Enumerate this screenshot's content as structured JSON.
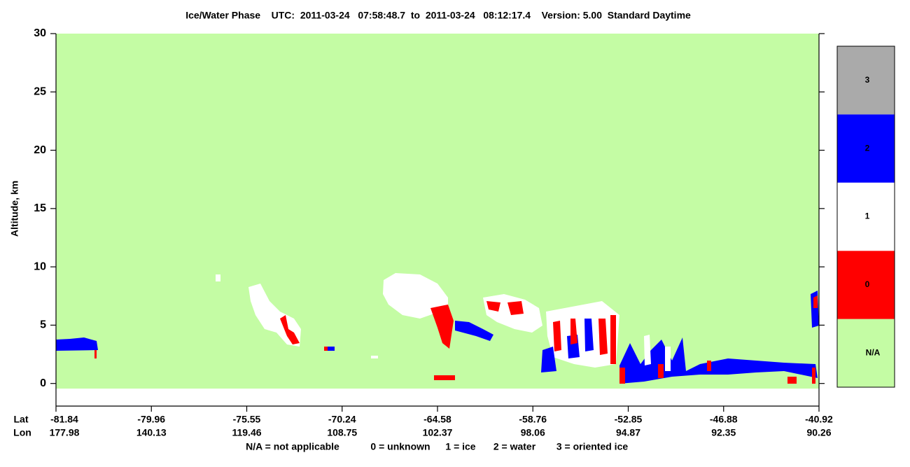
{
  "chart_data": {
    "type": "curtain",
    "title": "Ice/Water Phase    UTC:  2011-03-24   07:58:48.7  to  2011-03-24   08:12:17.4    Version: 5.00  Standard Daytime",
    "y_label": "Altitude, km",
    "ylim": [
      -2,
      30
    ],
    "yticks": [
      0,
      5,
      10,
      15,
      20,
      25,
      30
    ],
    "x_row_labels": [
      "Lat",
      "Lon"
    ],
    "x_ticks": [
      {
        "lat": "-81.84",
        "lon": "177.98"
      },
      {
        "lat": "-79.96",
        "lon": "140.13"
      },
      {
        "lat": "-75.55",
        "lon": "119.46"
      },
      {
        "lat": "-70.24",
        "lon": "108.75"
      },
      {
        "lat": "-64.58",
        "lon": "102.37"
      },
      {
        "lat": "-58.76",
        "lon": "98.06"
      },
      {
        "lat": "-52.85",
        "lon": "94.87"
      },
      {
        "lat": "-46.88",
        "lon": "92.35"
      },
      {
        "lat": "-40.92",
        "lon": "90.26"
      }
    ],
    "colorbar": [
      {
        "label": "N/A",
        "color": "#c4fca4"
      },
      {
        "label": "0",
        "color": "#ff0000"
      },
      {
        "label": "1",
        "color": "#ffffff"
      },
      {
        "label": "2",
        "color": "#0000ff"
      },
      {
        "label": "3",
        "color": "#aaaaaa"
      }
    ],
    "legend": [
      "N/A = not applicable",
      "0 = unknown",
      "1 = ice",
      "2 = water",
      "3 = oriented ice"
    ]
  }
}
